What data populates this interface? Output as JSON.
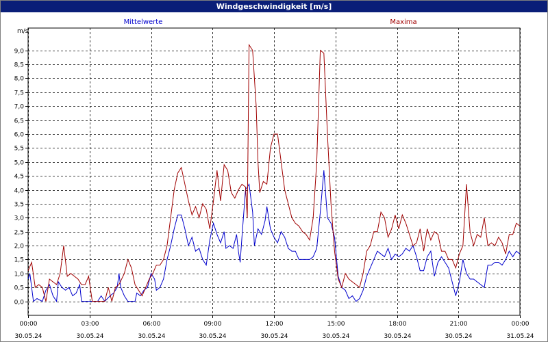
{
  "window": {
    "title": "Windgeschwindigkeit [m/s]"
  },
  "colors": {
    "mean": "#0000cc",
    "max": "#a00000",
    "grid": "#000000",
    "titlebar": "#0a1e78"
  },
  "chart_data": {
    "type": "line",
    "title": "Windgeschwindigkeit [m/s]",
    "ylabel": "m/s",
    "ylim": [
      -0.5,
      9.8
    ],
    "y_ticks": [
      "0,0",
      "0,5",
      "1,0",
      "1,5",
      "2,0",
      "2,5",
      "3,0",
      "3,5",
      "4,0",
      "4,5",
      "5,0",
      "5,5",
      "6,0",
      "6,5",
      "7,0",
      "7,5",
      "8,0",
      "8,5",
      "9,0"
    ],
    "x_range_hours": [
      0,
      24
    ],
    "x_ticks": [
      {
        "time": "00:00",
        "date": "30.05.24"
      },
      {
        "time": "03:00",
        "date": "30.05.24"
      },
      {
        "time": "06:00",
        "date": "30.05.24"
      },
      {
        "time": "09:00",
        "date": "30.05.24"
      },
      {
        "time": "12:00",
        "date": "30.05.24"
      },
      {
        "time": "15:00",
        "date": "30.05.24"
      },
      {
        "time": "18:00",
        "date": "30.05.24"
      },
      {
        "time": "21:00",
        "date": "30.05.24"
      },
      {
        "time": "00:00",
        "date": "31.05.24"
      }
    ],
    "grid": true,
    "series": [
      {
        "name": "Mittelwerte",
        "points": [
          [
            0.0,
            0.8
          ],
          [
            0.1,
            1.0
          ],
          [
            0.3,
            0.0
          ],
          [
            0.5,
            0.1
          ],
          [
            0.8,
            0.0
          ],
          [
            1.0,
            0.4
          ],
          [
            1.2,
            0.6
          ],
          [
            1.4,
            0.2
          ],
          [
            1.6,
            0.0
          ],
          [
            1.7,
            0.7
          ],
          [
            1.9,
            0.5
          ],
          [
            2.1,
            0.4
          ],
          [
            2.3,
            0.5
          ],
          [
            2.5,
            0.2
          ],
          [
            2.7,
            0.3
          ],
          [
            2.9,
            0.6
          ],
          [
            3.0,
            0.0
          ],
          [
            3.5,
            0.0
          ],
          [
            3.9,
            0.0
          ],
          [
            4.1,
            0.2
          ],
          [
            4.3,
            0.0
          ],
          [
            4.6,
            0.2
          ],
          [
            4.8,
            0.3
          ],
          [
            5.0,
            0.5
          ],
          [
            5.1,
            1.0
          ],
          [
            5.2,
            0.5
          ],
          [
            5.4,
            0.2
          ],
          [
            5.6,
            0.0
          ],
          [
            5.8,
            0.0
          ],
          [
            6.0,
            0.0
          ],
          [
            6.1,
            0.3
          ],
          [
            6.3,
            0.2
          ],
          [
            6.5,
            0.4
          ],
          [
            6.7,
            0.5
          ],
          [
            6.9,
            1.0
          ],
          [
            7.1,
            0.8
          ],
          [
            7.2,
            0.4
          ],
          [
            7.4,
            0.5
          ],
          [
            7.6,
            0.8
          ],
          [
            7.8,
            1.5
          ],
          [
            8.0,
            2.0
          ],
          [
            8.2,
            2.6
          ],
          [
            8.4,
            3.1
          ],
          [
            8.6,
            3.1
          ],
          [
            8.8,
            2.6
          ],
          [
            9.0,
            2.0
          ],
          [
            9.2,
            2.3
          ],
          [
            9.4,
            1.8
          ],
          [
            9.6,
            1.9
          ],
          [
            9.8,
            1.5
          ],
          [
            10.0,
            1.3
          ],
          [
            10.2,
            2.2
          ],
          [
            10.4,
            2.8
          ],
          [
            10.6,
            2.4
          ],
          [
            10.8,
            2.1
          ],
          [
            11.0,
            2.5
          ],
          [
            11.1,
            1.9
          ],
          [
            11.3,
            2.0
          ],
          [
            11.5,
            1.9
          ],
          [
            11.7,
            2.4
          ],
          [
            11.8,
            1.8
          ],
          [
            11.9,
            1.4
          ],
          [
            12.0,
            2.3
          ],
          [
            12.2,
            4.0
          ],
          [
            12.4,
            4.2
          ],
          [
            12.6,
            3.2
          ],
          [
            12.7,
            2.0
          ],
          [
            12.9,
            2.6
          ],
          [
            13.1,
            2.4
          ],
          [
            13.3,
            2.9
          ],
          [
            13.4,
            3.4
          ],
          [
            13.6,
            2.6
          ],
          [
            13.8,
            2.3
          ],
          [
            14.0,
            2.1
          ],
          [
            14.2,
            2.5
          ],
          [
            14.4,
            2.3
          ],
          [
            14.6,
            1.9
          ],
          [
            14.8,
            1.8
          ],
          [
            15.0,
            1.8
          ],
          [
            15.2,
            1.5
          ],
          [
            15.5,
            1.5
          ],
          [
            15.8,
            1.5
          ],
          [
            16.0,
            1.6
          ],
          [
            16.2,
            1.9
          ],
          [
            16.4,
            3.2
          ],
          [
            16.6,
            4.7
          ],
          [
            16.8,
            3.0
          ],
          [
            17.0,
            2.8
          ],
          [
            17.2,
            2.3
          ],
          [
            17.4,
            0.9
          ],
          [
            17.6,
            0.5
          ],
          [
            17.8,
            0.4
          ],
          [
            18.0,
            0.1
          ],
          [
            18.2,
            0.2
          ],
          [
            18.4,
            0.0
          ],
          [
            18.6,
            0.1
          ],
          [
            18.8,
            0.4
          ],
          [
            19.0,
            0.9
          ],
          [
            19.2,
            1.2
          ],
          [
            19.4,
            1.5
          ],
          [
            19.6,
            1.8
          ],
          [
            19.8,
            1.7
          ],
          [
            20.0,
            1.6
          ],
          [
            20.2,
            1.9
          ],
          [
            20.4,
            1.5
          ],
          [
            20.6,
            1.7
          ],
          [
            20.8,
            1.6
          ],
          [
            21.0,
            1.7
          ],
          [
            21.2,
            1.9
          ],
          [
            21.4,
            1.8
          ],
          [
            21.6,
            2.0
          ],
          [
            21.8,
            1.6
          ],
          [
            22.0,
            1.1
          ],
          [
            22.2,
            1.1
          ],
          [
            22.4,
            1.6
          ],
          [
            22.6,
            1.8
          ],
          [
            22.8,
            0.9
          ],
          [
            23.0,
            1.4
          ],
          [
            23.2,
            1.6
          ],
          [
            23.4,
            1.4
          ],
          [
            23.6,
            1.2
          ],
          [
            23.8,
            0.7
          ],
          [
            24.0,
            0.2
          ],
          [
            24.2,
            0.7
          ],
          [
            24.4,
            1.5
          ],
          [
            24.6,
            1.0
          ],
          [
            24.8,
            0.8
          ],
          [
            25.0,
            0.8
          ],
          [
            25.2,
            0.7
          ],
          [
            25.4,
            0.6
          ],
          [
            25.6,
            0.5
          ],
          [
            25.8,
            1.3
          ],
          [
            26.0,
            1.3
          ],
          [
            26.2,
            1.4
          ],
          [
            26.4,
            1.4
          ],
          [
            26.6,
            1.3
          ],
          [
            26.8,
            1.5
          ],
          [
            27.0,
            1.8
          ],
          [
            27.2,
            1.6
          ],
          [
            27.4,
            1.8
          ],
          [
            27.6,
            1.7
          ]
        ]
      },
      {
        "name": "Maxima",
        "points": [
          [
            0.0,
            1.1
          ],
          [
            0.2,
            1.4
          ],
          [
            0.4,
            0.5
          ],
          [
            0.6,
            0.6
          ],
          [
            0.8,
            0.5
          ],
          [
            1.0,
            0.0
          ],
          [
            1.2,
            0.8
          ],
          [
            1.4,
            0.7
          ],
          [
            1.6,
            0.6
          ],
          [
            1.8,
            1.0
          ],
          [
            2.0,
            2.0
          ],
          [
            2.2,
            0.9
          ],
          [
            2.4,
            1.0
          ],
          [
            2.6,
            0.9
          ],
          [
            2.8,
            0.8
          ],
          [
            3.0,
            0.6
          ],
          [
            3.2,
            0.6
          ],
          [
            3.4,
            0.9
          ],
          [
            3.6,
            0.0
          ],
          [
            4.0,
            0.0
          ],
          [
            4.3,
            0.0
          ],
          [
            4.5,
            0.5
          ],
          [
            4.7,
            0.0
          ],
          [
            4.9,
            0.5
          ],
          [
            5.1,
            0.6
          ],
          [
            5.4,
            1.0
          ],
          [
            5.6,
            1.5
          ],
          [
            5.8,
            1.2
          ],
          [
            6.0,
            0.6
          ],
          [
            6.2,
            0.4
          ],
          [
            6.4,
            0.2
          ],
          [
            6.6,
            0.5
          ],
          [
            6.8,
            0.8
          ],
          [
            7.0,
            1.0
          ],
          [
            7.2,
            1.3
          ],
          [
            7.4,
            1.3
          ],
          [
            7.6,
            1.5
          ],
          [
            7.8,
            2.0
          ],
          [
            8.0,
            3.0
          ],
          [
            8.2,
            4.0
          ],
          [
            8.4,
            4.6
          ],
          [
            8.6,
            4.8
          ],
          [
            8.8,
            4.2
          ],
          [
            9.0,
            3.6
          ],
          [
            9.2,
            3.1
          ],
          [
            9.4,
            3.4
          ],
          [
            9.6,
            3.0
          ],
          [
            9.8,
            3.5
          ],
          [
            10.0,
            3.3
          ],
          [
            10.2,
            2.6
          ],
          [
            10.4,
            3.6
          ],
          [
            10.6,
            4.7
          ],
          [
            10.8,
            3.6
          ],
          [
            11.0,
            4.9
          ],
          [
            11.2,
            4.7
          ],
          [
            11.4,
            3.9
          ],
          [
            11.6,
            3.7
          ],
          [
            11.8,
            4.0
          ],
          [
            12.0,
            4.2
          ],
          [
            12.2,
            4.1
          ],
          [
            12.3,
            3.0
          ],
          [
            12.4,
            9.2
          ],
          [
            12.6,
            9.0
          ],
          [
            12.8,
            7.0
          ],
          [
            12.9,
            5.0
          ],
          [
            13.0,
            3.9
          ],
          [
            13.2,
            4.3
          ],
          [
            13.4,
            4.2
          ],
          [
            13.6,
            5.5
          ],
          [
            13.8,
            6.0
          ],
          [
            14.0,
            6.0
          ],
          [
            14.2,
            5.0
          ],
          [
            14.4,
            4.0
          ],
          [
            14.6,
            3.5
          ],
          [
            14.8,
            3.0
          ],
          [
            15.0,
            2.8
          ],
          [
            15.2,
            2.7
          ],
          [
            15.4,
            2.5
          ],
          [
            15.6,
            2.4
          ],
          [
            15.8,
            2.2
          ],
          [
            16.0,
            3.0
          ],
          [
            16.2,
            5.0
          ],
          [
            16.4,
            9.0
          ],
          [
            16.6,
            8.9
          ],
          [
            16.8,
            6.0
          ],
          [
            17.0,
            3.5
          ],
          [
            17.2,
            1.8
          ],
          [
            17.4,
            0.8
          ],
          [
            17.6,
            0.5
          ],
          [
            17.8,
            1.0
          ],
          [
            18.0,
            0.8
          ],
          [
            18.2,
            0.7
          ],
          [
            18.4,
            0.6
          ],
          [
            18.6,
            0.5
          ],
          [
            18.8,
            1.0
          ],
          [
            19.0,
            1.8
          ],
          [
            19.2,
            2.0
          ],
          [
            19.4,
            2.5
          ],
          [
            19.6,
            2.5
          ],
          [
            19.8,
            3.2
          ],
          [
            20.0,
            3.0
          ],
          [
            20.2,
            2.3
          ],
          [
            20.4,
            2.6
          ],
          [
            20.6,
            3.1
          ],
          [
            20.8,
            2.6
          ],
          [
            21.0,
            3.1
          ],
          [
            21.2,
            2.8
          ],
          [
            21.4,
            2.4
          ],
          [
            21.6,
            2.0
          ],
          [
            21.8,
            2.1
          ],
          [
            22.0,
            2.6
          ],
          [
            22.2,
            1.8
          ],
          [
            22.4,
            2.6
          ],
          [
            22.6,
            2.2
          ],
          [
            22.8,
            2.5
          ],
          [
            23.0,
            2.4
          ],
          [
            23.2,
            1.8
          ],
          [
            23.4,
            1.8
          ],
          [
            23.6,
            1.5
          ],
          [
            23.8,
            1.5
          ],
          [
            24.0,
            1.2
          ],
          [
            24.2,
            1.7
          ],
          [
            24.4,
            2.0
          ],
          [
            24.6,
            4.2
          ],
          [
            24.8,
            2.5
          ],
          [
            25.0,
            2.0
          ],
          [
            25.2,
            2.4
          ],
          [
            25.4,
            2.3
          ],
          [
            25.6,
            3.0
          ],
          [
            25.8,
            2.0
          ],
          [
            26.0,
            2.1
          ],
          [
            26.2,
            2.0
          ],
          [
            26.4,
            2.3
          ],
          [
            26.6,
            2.1
          ],
          [
            26.8,
            1.7
          ],
          [
            27.0,
            2.4
          ],
          [
            27.2,
            2.4
          ],
          [
            27.4,
            2.8
          ],
          [
            27.6,
            2.7
          ]
        ]
      }
    ]
  }
}
